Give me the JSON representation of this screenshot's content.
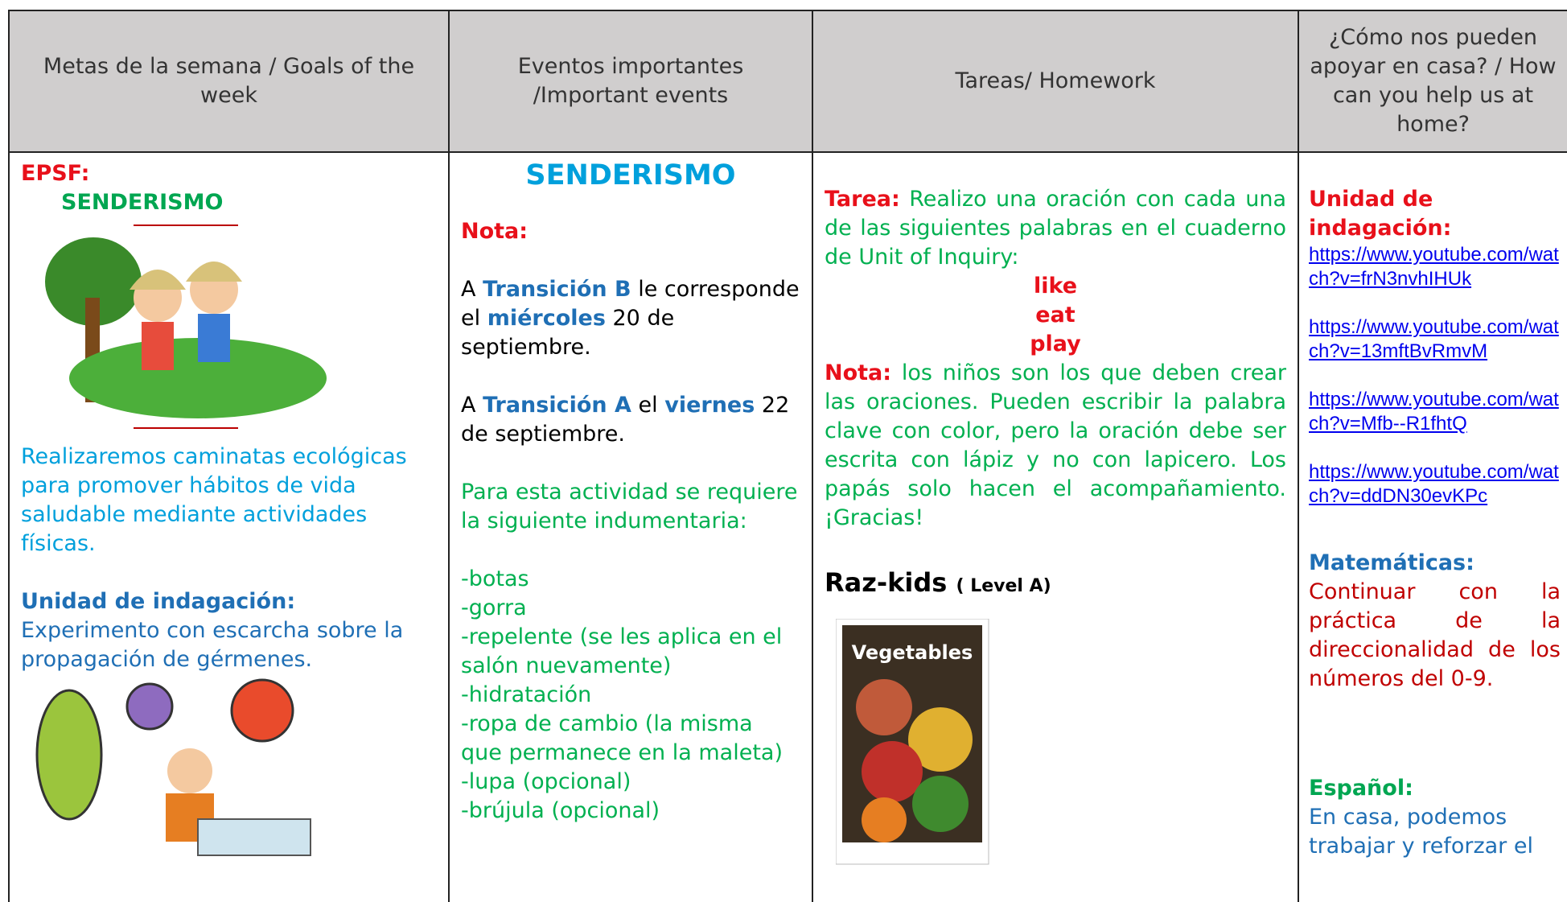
{
  "headers": [
    "Metas de la semana / Goals of the week",
    "Eventos importantes /Important events",
    "Tareas/ Homework",
    "¿Cómo nos pueden apoyar en casa? / How can you help us at home?"
  ],
  "goals": {
    "label": "EPSF:",
    "title": "SENDERISMO",
    "description": "Realizaremos caminatas ecológicas para promover hábitos de vida saludable mediante actividades físicas.",
    "unit_label": "Unidad de indagación:",
    "unit_text": "Experimento con escarcha sobre la propagación de gérmenes."
  },
  "events": {
    "title": "SENDERISMO",
    "note_label": "Nota:",
    "line1": [
      "A ",
      "Transición B",
      " le corresponde el ",
      "miércoles",
      " 20 de septiembre."
    ],
    "line2": [
      "A ",
      "Transición A",
      " el ",
      "viernes",
      " 22 de septiembre."
    ],
    "requirement": "Para esta actividad se requiere la siguiente indumentaria:",
    "items": [
      "-botas",
      "-gorra",
      "-repelente (se les aplica en el salón nuevamente)",
      "-hidratación",
      "-ropa de cambio (la misma que permanece en la maleta)",
      "-lupa (opcional)",
      "-brújula (opcional)"
    ]
  },
  "homework": {
    "task_label": "Tarea:",
    "task_text": " Realizo una oración con cada una de las siguientes palabras en el cuaderno de Unit of Inquiry:",
    "words": [
      "like",
      "eat",
      "play"
    ],
    "note_label": "Nota:",
    "note_text": " los niños son los que deben crear las oraciones. Pueden escribir la palabra clave con color, pero la oración debe ser escrita con lápiz y no con lapicero. Los papás solo hacen el acompañamiento. ¡Gracias!",
    "reading_title": "Raz-kids",
    "reading_level": "( Level A)",
    "book_title": "Vegetables"
  },
  "support": {
    "unit_label": "Unidad de indagación:",
    "links": [
      "https://www.youtube.com/watch?v=frN3nvhIHUk",
      "https://www.youtube.com/watch?v=13mftBvRmvM",
      "https://www.youtube.com/watch?v=Mfb--R1fhtQ",
      "https://www.youtube.com/watch?v=ddDN30evKPc"
    ],
    "math_label": "Matemáticas:",
    "math_text": "Continuar con la práctica de la direccionalidad de los números del 0-9.",
    "spanish_label": "Español:",
    "spanish_text": "En casa, podemos trabajar y reforzar el"
  }
}
